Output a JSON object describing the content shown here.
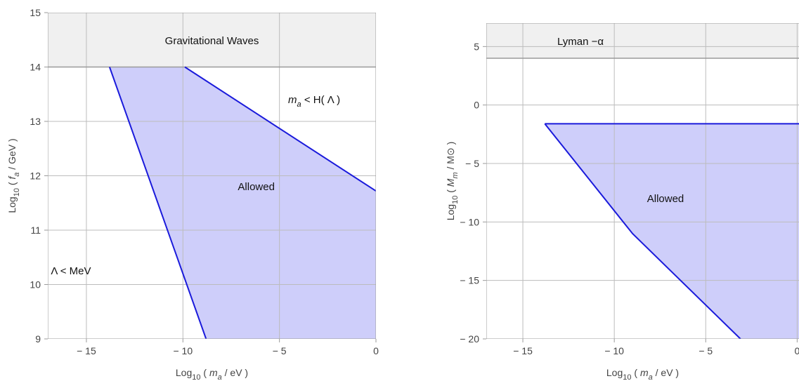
{
  "colors": {
    "allowed_fill": "#c9c9fa",
    "allowed_edge": "#1a1adb",
    "excluded_band_fill": "#f0f0f0",
    "excluded_band_edge": "#9a9a9a",
    "grid": "#bcbcbc",
    "frame": "#9a9a9a",
    "text": "#444444"
  },
  "chart_data": [
    {
      "type": "area",
      "title": "",
      "xlabel": {
        "base": "Log",
        "sub": "10",
        "open": " ( ",
        "var": "m",
        "var_sub": "a",
        "tail": "  /  eV )"
      },
      "ylabel": {
        "base": "Log",
        "sub": "10",
        "open": " ( ",
        "var": "f",
        "var_sub": "a",
        "tail": "  /  GeV )"
      },
      "xlim": [
        -17,
        0
      ],
      "ylim": [
        9,
        15
      ],
      "xticks": [
        -15,
        -10,
        -5,
        0
      ],
      "yticks": [
        9,
        10,
        11,
        12,
        13,
        14,
        15
      ],
      "xtick_labels": [
        "− 15",
        "− 10",
        "− 5",
        "0"
      ],
      "ytick_labels": [
        "9",
        "10",
        "11",
        "12",
        "13",
        "14",
        "15"
      ],
      "grid": true,
      "excluded_band": {
        "y0": 14,
        "y1": 15,
        "label": "Gravitational   Waves"
      },
      "allowed_region": {
        "label": "Allowed",
        "polygon": [
          [
            -13.8,
            14
          ],
          [
            -9.9,
            14
          ],
          [
            0,
            11.72
          ],
          [
            0,
            9
          ],
          [
            -8.8,
            9
          ]
        ]
      },
      "boundary_lines": [
        [
          [
            -13.8,
            14
          ],
          [
            -8.8,
            9
          ]
        ],
        [
          [
            -9.9,
            14
          ],
          [
            0,
            11.72
          ]
        ]
      ],
      "annotations": [
        {
          "id": "ma-lt-h",
          "var": "m",
          "var_sub": "a",
          "rest": "  < H( Λ )",
          "x": -3.2,
          "y": 13.4
        },
        {
          "id": "lambda-lt-mev",
          "var": "",
          "var_sub": "",
          "rest": "Λ   < MeV",
          "x": -15.8,
          "y": 10.25
        }
      ],
      "region_label_pos": {
        "x": -6.2,
        "y": 11.8
      }
    },
    {
      "type": "area",
      "title": "",
      "xlabel": {
        "base": "Log",
        "sub": "10",
        "open": " ( ",
        "var": "m",
        "var_sub": "a",
        "tail": "  /  eV )"
      },
      "ylabel": {
        "base": "Log",
        "sub": "10",
        "open": " ( ",
        "var": "M",
        "var_sub": "m",
        "tail": "  /  M⊙ )"
      },
      "xlim": [
        -17,
        0.6
      ],
      "ylim": [
        -20,
        7
      ],
      "xticks": [
        -15,
        -10,
        -5,
        0
      ],
      "yticks": [
        -20,
        -15,
        -10,
        -5,
        0,
        5
      ],
      "xtick_labels": [
        "− 15",
        "− 10",
        "− 5",
        "0"
      ],
      "ytick_labels": [
        "− 20",
        "− 15",
        "− 10",
        "− 5",
        "0",
        "5"
      ],
      "grid": true,
      "excluded_band": {
        "y0": 4,
        "y1": 7,
        "label": "Lyman  −α"
      },
      "allowed_region": {
        "label": "Allowed",
        "polygon": [
          [
            -13.8,
            -1.6
          ],
          [
            0.6,
            -1.6
          ],
          [
            0.6,
            -20
          ],
          [
            -3.1,
            -20
          ],
          [
            -9,
            -11
          ]
        ]
      },
      "boundary_lines": [
        [
          [
            -13.8,
            -1.6
          ],
          [
            0.6,
            -1.6
          ]
        ],
        [
          [
            -13.8,
            -1.6
          ],
          [
            -9,
            -11
          ],
          [
            -3.1,
            -20
          ]
        ]
      ],
      "annotations": [],
      "region_label_pos": {
        "x": -7.2,
        "y": -8
      }
    }
  ]
}
